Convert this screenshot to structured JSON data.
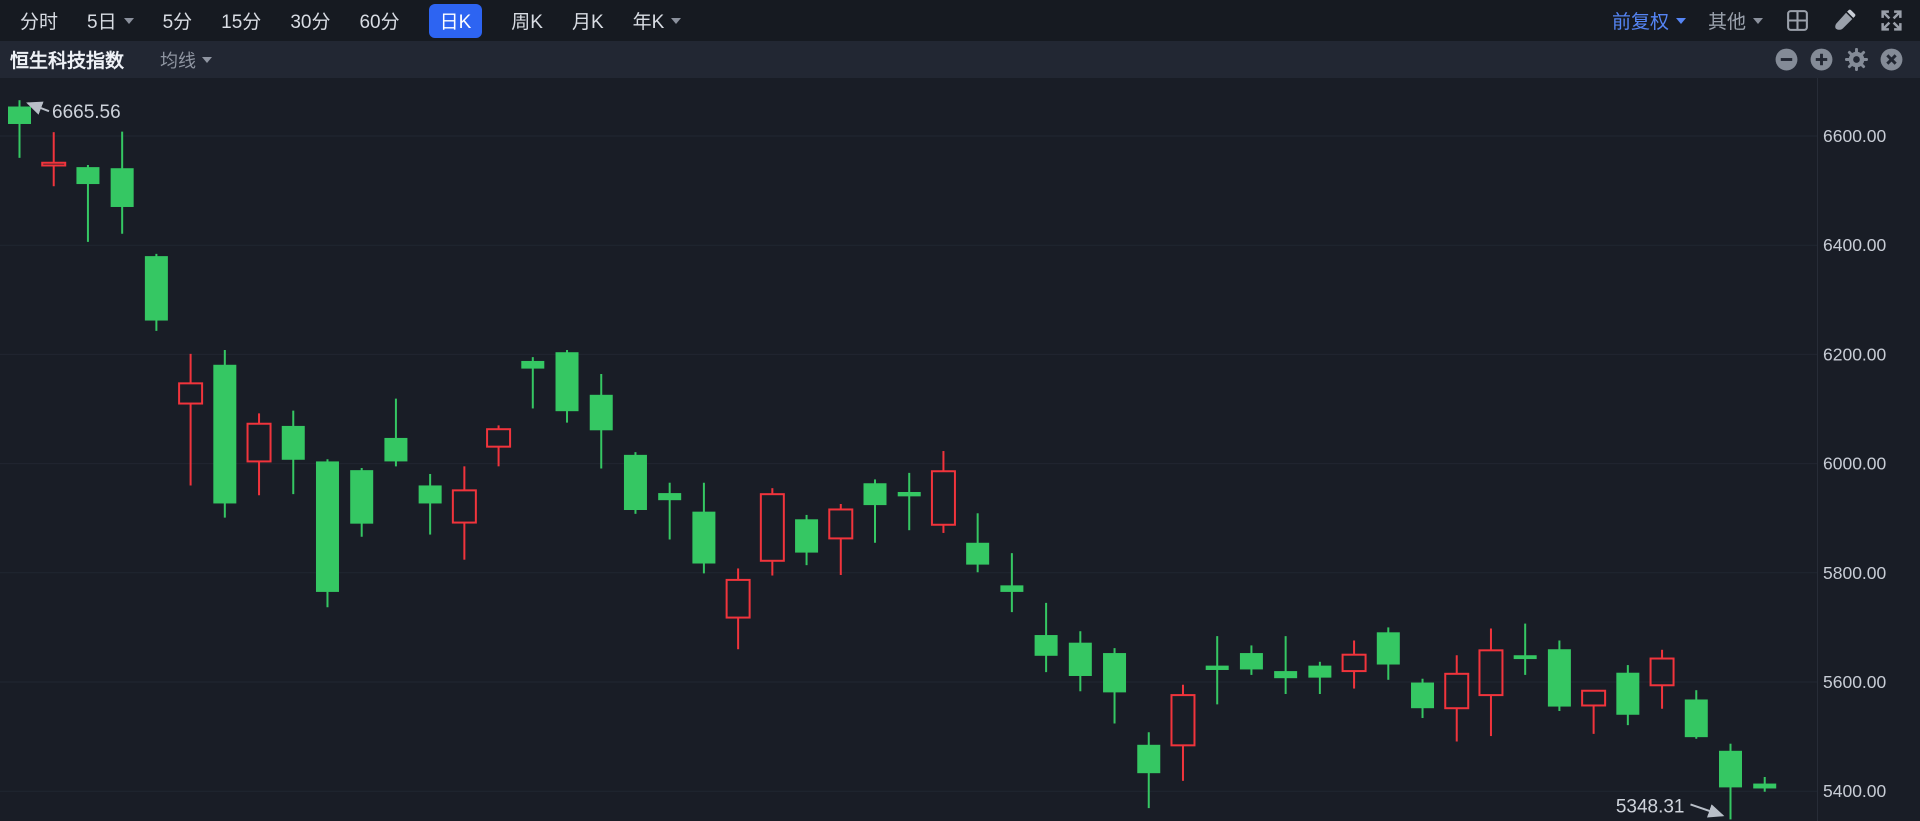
{
  "header": {
    "tabs": [
      {
        "label": "分时",
        "chevron": false,
        "active": false
      },
      {
        "label": "5日",
        "chevron": true,
        "active": false
      },
      {
        "label": "5分",
        "chevron": false,
        "active": false
      },
      {
        "label": "15分",
        "chevron": false,
        "active": false
      },
      {
        "label": "30分",
        "chevron": false,
        "active": false
      },
      {
        "label": "60分",
        "chevron": false,
        "active": false
      },
      {
        "label": "日K",
        "chevron": false,
        "active": true
      },
      {
        "label": "周K",
        "chevron": false,
        "active": false
      },
      {
        "label": "月K",
        "chevron": false,
        "active": false
      },
      {
        "label": "年K",
        "chevron": true,
        "active": false
      }
    ],
    "adjustment_label": "前复权",
    "more_label": "其他"
  },
  "subheader": {
    "title": "恒生科技指数",
    "overlay_label": "均线"
  },
  "colors": {
    "background": "#191d26",
    "toolbar_bg": "#161a21",
    "subheader_bg": "#222733",
    "grid": "#212631",
    "axis_line": "#272c37",
    "axis_text": "#c7ccd5",
    "up_red": "#f1343c",
    "down_green": "#35c763",
    "accent_blue": "#2d64f2",
    "link_blue": "#5585f5",
    "annotation_text": "#ced3db",
    "annotation_arrow": "#b9bfc8"
  },
  "chart_data": {
    "type": "candlestick",
    "symbol_title": "恒生科技指数",
    "period": "日K",
    "legend_position": "none",
    "grid": true,
    "y_axis": {
      "ticks": [
        "6600.00",
        "6400.00",
        "6200.00",
        "6000.00",
        "5800.00",
        "5600.00",
        "5400.00"
      ],
      "tick_values": [
        6600,
        6400,
        6200,
        6000,
        5800,
        5600,
        5400
      ],
      "top_value_at_top_gridline": 6600,
      "points_per_gridline": 200
    },
    "annotations": {
      "high": {
        "label": "6665.56",
        "value": 6665.56,
        "candle_index": 0
      },
      "low": {
        "label": "5348.31",
        "value": 5348.31,
        "candle_index": 50
      }
    },
    "convention": "red_hollow_up_green_solid_down",
    "candles_ohlc": [
      [
        6654,
        6665.56,
        6560,
        6622
      ],
      [
        6546,
        6607,
        6508,
        6551
      ],
      [
        6543,
        6547,
        6406,
        6512
      ],
      [
        6541,
        6608,
        6421,
        6470
      ],
      [
        6380,
        6384,
        6243,
        6262
      ],
      [
        6110,
        6201,
        5960,
        6147
      ],
      [
        6181,
        6208,
        5901,
        5927
      ],
      [
        6004,
        6092,
        5942,
        6073
      ],
      [
        6069,
        6097,
        5944,
        6007
      ],
      [
        6004,
        6008,
        5737,
        5765
      ],
      [
        5988,
        5992,
        5866,
        5890
      ],
      [
        6047,
        6119,
        5995,
        6004
      ],
      [
        5960,
        5981,
        5870,
        5927
      ],
      [
        5892,
        5995,
        5824,
        5951
      ],
      [
        6031,
        6070,
        5995,
        6063
      ],
      [
        6188,
        6195,
        6101,
        6174
      ],
      [
        6204,
        6208,
        6075,
        6096
      ],
      [
        6126,
        6164,
        5991,
        6061
      ],
      [
        6016,
        6021,
        5908,
        5915
      ],
      [
        5946,
        5965,
        5861,
        5933
      ],
      [
        5912,
        5965,
        5799,
        5817
      ],
      [
        5718,
        5808,
        5660,
        5787
      ],
      [
        5822,
        5955,
        5795,
        5944
      ],
      [
        5898,
        5906,
        5814,
        5837
      ],
      [
        5863,
        5926,
        5796,
        5916
      ],
      [
        5964,
        5971,
        5855,
        5924
      ],
      [
        5948,
        5983,
        5878,
        5940
      ],
      [
        5888,
        6023,
        5873,
        5986
      ],
      [
        5855,
        5909,
        5801,
        5815
      ],
      [
        5777,
        5836,
        5728,
        5765
      ],
      [
        5686,
        5745,
        5618,
        5648
      ],
      [
        5672,
        5693,
        5583,
        5611
      ],
      [
        5653,
        5662,
        5524,
        5581
      ],
      [
        5485,
        5508,
        5369,
        5433
      ],
      [
        5484,
        5595,
        5419,
        5576
      ],
      [
        5630,
        5684,
        5559,
        5622
      ],
      [
        5653,
        5667,
        5613,
        5623
      ],
      [
        5620,
        5684,
        5578,
        5607
      ],
      [
        5630,
        5637,
        5578,
        5608
      ],
      [
        5620,
        5676,
        5588,
        5650
      ],
      [
        5691,
        5700,
        5604,
        5632
      ],
      [
        5599,
        5606,
        5534,
        5552
      ],
      [
        5552,
        5649,
        5491,
        5615
      ],
      [
        5576,
        5698,
        5501,
        5658
      ],
      [
        5649,
        5707,
        5613,
        5642
      ],
      [
        5660,
        5676,
        5547,
        5555
      ],
      [
        5557,
        5584,
        5505,
        5584
      ],
      [
        5617,
        5631,
        5521,
        5540
      ],
      [
        5594,
        5659,
        5551,
        5643
      ],
      [
        5568,
        5585,
        5496,
        5499
      ],
      [
        5474,
        5487,
        5348.31,
        5407
      ],
      [
        5414,
        5426,
        5399,
        5405
      ]
    ]
  }
}
